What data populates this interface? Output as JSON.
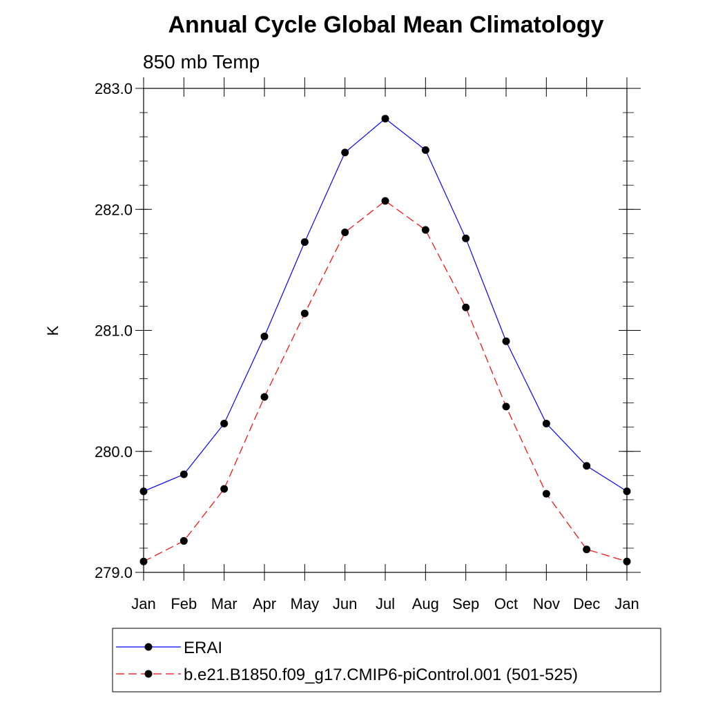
{
  "chart_data": {
    "type": "line",
    "title": "Annual Cycle Global Mean Climatology",
    "subtitle": "850 mb Temp",
    "xlabel": "",
    "ylabel": "K",
    "categories": [
      "Jan",
      "Feb",
      "Mar",
      "Apr",
      "May",
      "Jun",
      "Jul",
      "Aug",
      "Sep",
      "Oct",
      "Nov",
      "Dec",
      "Jan"
    ],
    "ylim": [
      279.0,
      283.0
    ],
    "yticks": [
      "279.0",
      "280.0",
      "281.0",
      "282.0",
      "283.0"
    ],
    "grid": false,
    "legend_position": "bottom",
    "series": [
      {
        "name": "ERAI",
        "color": "#0000ff",
        "line_style": "solid",
        "marker": "filled-circle",
        "values": [
          279.67,
          279.81,
          280.23,
          280.95,
          281.73,
          282.47,
          282.75,
          282.49,
          281.76,
          280.91,
          280.23,
          279.88,
          279.67
        ]
      },
      {
        "name": "b.e21.B1850.f09_g17.CMIP6-piControl.001 (501-525)",
        "color": "#ff0000",
        "line_style": "dashed",
        "marker": "filled-circle",
        "values": [
          279.09,
          279.26,
          279.69,
          280.45,
          281.14,
          281.81,
          282.07,
          281.83,
          281.19,
          280.37,
          279.65,
          279.19,
          279.09
        ]
      }
    ]
  }
}
